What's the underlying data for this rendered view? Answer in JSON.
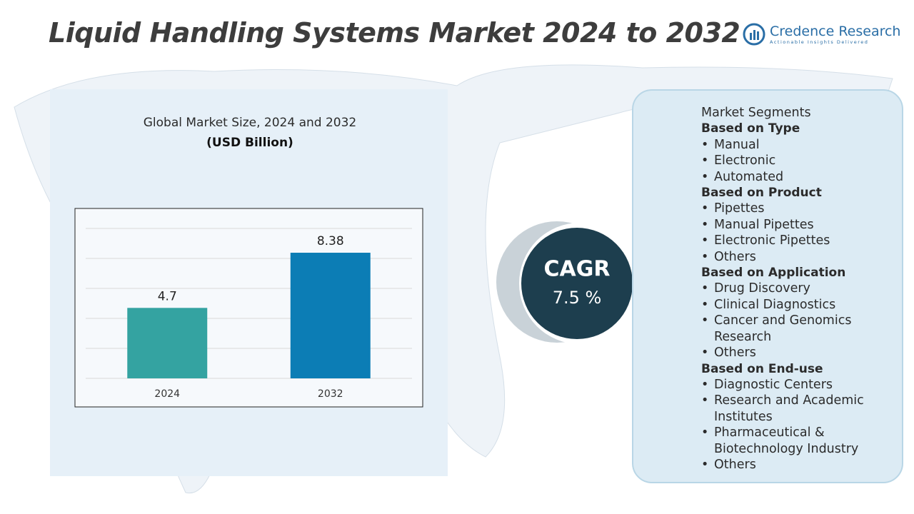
{
  "header": {
    "title": "Liquid Handling Systems Market 2024 to 2032",
    "brand": "Credence Research",
    "tagline": "Actionable Insights Delivered"
  },
  "chart_data": {
    "type": "bar",
    "title": "Global Market Size, 2024 and 2032",
    "subtitle": "(USD Billion)",
    "categories": [
      "2024",
      "2032"
    ],
    "values": [
      4.7,
      8.38
    ],
    "colors": [
      "#34a3a1",
      "#0c7db5"
    ],
    "ylim": [
      0,
      10
    ],
    "yticks": [
      0,
      2,
      4,
      6,
      8,
      10
    ],
    "grid": true
  },
  "cagr": {
    "label": "CAGR",
    "value": "7.5 %"
  },
  "segments": {
    "title": "Market Segments",
    "groups": [
      {
        "heading": "Based on Type",
        "items": [
          "Manual",
          "Electronic",
          "Automated"
        ]
      },
      {
        "heading": "Based on Product",
        "items": [
          "Pipettes",
          "Manual Pipettes",
          "Electronic Pipettes",
          "Others"
        ]
      },
      {
        "heading": "Based on Application",
        "items": [
          "Drug Discovery",
          "Clinical Diagnostics",
          "Cancer and Genomics Research",
          "Others"
        ]
      },
      {
        "heading": "Based on End-use",
        "items": [
          "Diagnostic Centers",
          "Research and Academic Institutes",
          "Pharmaceutical & Biotechnology Industry",
          "Others"
        ]
      }
    ]
  }
}
